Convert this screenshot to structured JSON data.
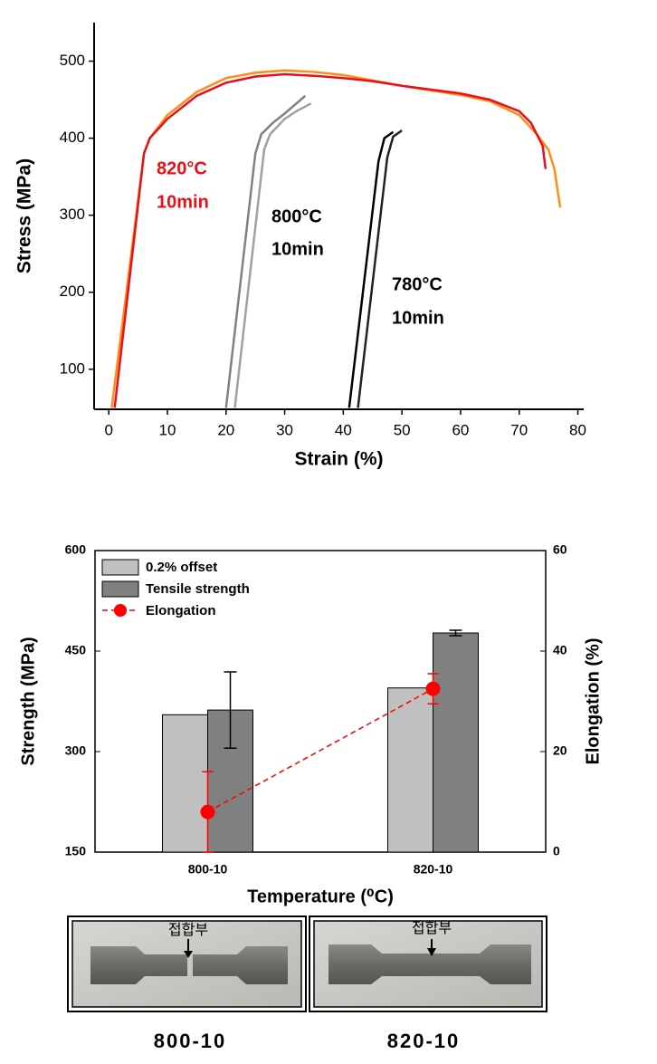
{
  "chart_data": [
    {
      "type": "line",
      "xlabel": "Strain (%)",
      "ylabel": "Stress (MPa)",
      "xlim": [
        -2.5,
        81
      ],
      "xticks": [
        0,
        10,
        20,
        30,
        40,
        50,
        60,
        70,
        80
      ],
      "ylim": [
        48,
        550
      ],
      "yticks": [
        100,
        200,
        300,
        400,
        500
      ],
      "series": [
        {
          "color": "#ff8c1a",
          "x": [
            0.5,
            6,
            7,
            10,
            15,
            20,
            25,
            30,
            35,
            40,
            45,
            50,
            55,
            60,
            65,
            70,
            73,
            75,
            76,
            77
          ],
          "values": [
            50,
            380,
            400,
            430,
            460,
            478,
            485,
            488,
            486,
            482,
            475,
            468,
            462,
            456,
            448,
            430,
            405,
            385,
            360,
            310
          ]
        },
        {
          "color": "#e8101a",
          "x": [
            1,
            6,
            7,
            10,
            15,
            20,
            25,
            30,
            35,
            40,
            45,
            50,
            55,
            60,
            65,
            70,
            72,
            74,
            74.5
          ],
          "values": [
            50,
            380,
            400,
            425,
            455,
            472,
            480,
            483,
            481,
            478,
            474,
            468,
            463,
            458,
            450,
            435,
            420,
            390,
            360
          ]
        },
        {
          "color": "#808080",
          "x": [
            20,
            25,
            26,
            28,
            30,
            32,
            33.5
          ],
          "values": [
            50,
            380,
            405,
            420,
            432,
            445,
            455
          ]
        },
        {
          "color": "#a0a0a0",
          "x": [
            21.5,
            26.5,
            27.5,
            30,
            32,
            34.5
          ],
          "values": [
            50,
            385,
            405,
            425,
            435,
            445
          ]
        },
        {
          "color": "#000000",
          "x": [
            41,
            46,
            47,
            48.5
          ],
          "values": [
            50,
            370,
            400,
            408
          ]
        },
        {
          "color": "#222222",
          "x": [
            42.5,
            47.5,
            48.5,
            50
          ],
          "values": [
            50,
            375,
            402,
            410
          ]
        }
      ],
      "annotations": [
        {
          "text": "820°C",
          "color": "#e8101a"
        },
        {
          "text": "10min",
          "color": "#e8101a"
        },
        {
          "text": "800°C",
          "color": "#000000"
        },
        {
          "text": "10min",
          "color": "#000000"
        },
        {
          "text": "780°C",
          "color": "#000000"
        },
        {
          "text": "10min",
          "color": "#000000"
        }
      ]
    },
    {
      "type": "bar",
      "xlabel": "Temperature (⁰C)",
      "ylabel": "Strength (MPa)",
      "y2label": "Elongation (%)",
      "categories": [
        "800-10",
        "820-10"
      ],
      "ylim": [
        150,
        600
      ],
      "yticks": [
        150,
        300,
        450,
        600
      ],
      "y2lim": [
        0,
        60
      ],
      "y2ticks": [
        0,
        20,
        40,
        60
      ],
      "legend": "upper left",
      "series": [
        {
          "name": "0.2% offset",
          "color": "#c0c0c0",
          "values": [
            355,
            395
          ]
        },
        {
          "name": "Tensile strength",
          "color": "#808080",
          "values": [
            362,
            477
          ],
          "errors": [
            57,
            4
          ]
        },
        {
          "name": "Elongation",
          "color": "#ff0000",
          "axis": "y2",
          "values": [
            8,
            32.5
          ],
          "errors": [
            8,
            3
          ]
        }
      ]
    }
  ],
  "photos": [
    {
      "annotation": "접합부",
      "caption": "800-10"
    },
    {
      "annotation": "접합부",
      "caption": "820-10"
    }
  ]
}
